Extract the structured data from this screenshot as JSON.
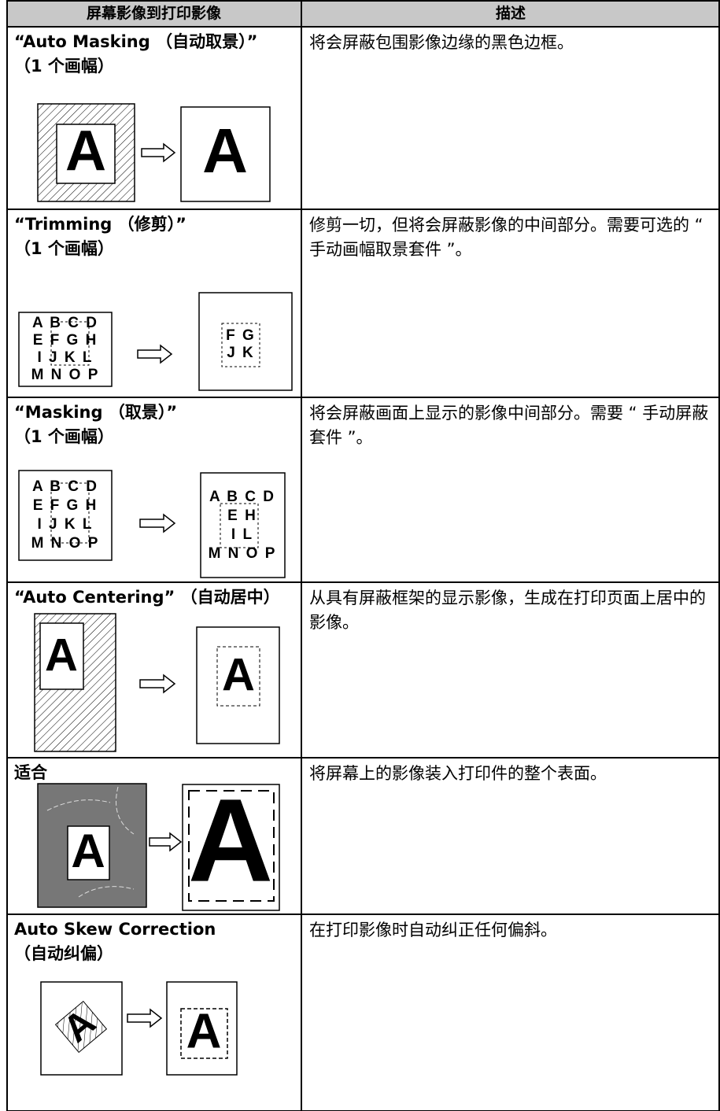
{
  "table": {
    "header": [
      "屏幕影像到打印影像",
      "描述"
    ],
    "rows": [
      {
        "title": [
          "“Auto Masking （自动取景）”",
          "（1 个画幅）"
        ],
        "description": "将会屏蔽包围影像边缘的黑色边框。",
        "figure": {
          "before": [
            "A"
          ],
          "after": [
            "A"
          ]
        }
      },
      {
        "title": [
          "“Trimming （修剪）”",
          "（1 个画幅）"
        ],
        "description": "修剪一切，但将会屏蔽影像的中间部分。需要可选的 “ 手动画幅取景套件 ”。",
        "figure": {
          "before": [
            "A B C D",
            "E F G H",
            "I J K L",
            "M N O P"
          ],
          "after": [
            "F G",
            "J K"
          ]
        }
      },
      {
        "title": [
          "“Masking （取景）”",
          "（1 个画幅）"
        ],
        "description": "将会屏蔽画面上显示的影像中间部分。需要 “ 手动屏蔽套件 ”。",
        "figure": {
          "before": [
            "A B C D",
            "E F G H",
            "I J K L",
            "M N O P"
          ],
          "after": [
            "A B C D",
            "E H",
            "I L",
            "M N O P"
          ]
        }
      },
      {
        "title": [
          "“Auto Centering” （自动居中）"
        ],
        "description": "从具有屏蔽框架的显示影像，生成在打印页面上居中的影像。",
        "figure": {
          "before": [
            "A"
          ],
          "after": [
            "A"
          ]
        }
      },
      {
        "title": [
          "适合"
        ],
        "description": "将屏幕上的影像装入打印件的整个表面。",
        "figure": {
          "before": [
            "A"
          ],
          "after": [
            "A"
          ]
        }
      },
      {
        "title": [
          "Auto Skew Correction",
          "（自动纠偏）"
        ],
        "description": "在打印影像时自动纠正任何偏斜。",
        "figure": {
          "before": [
            "A"
          ],
          "after": [
            "A"
          ]
        }
      }
    ]
  }
}
